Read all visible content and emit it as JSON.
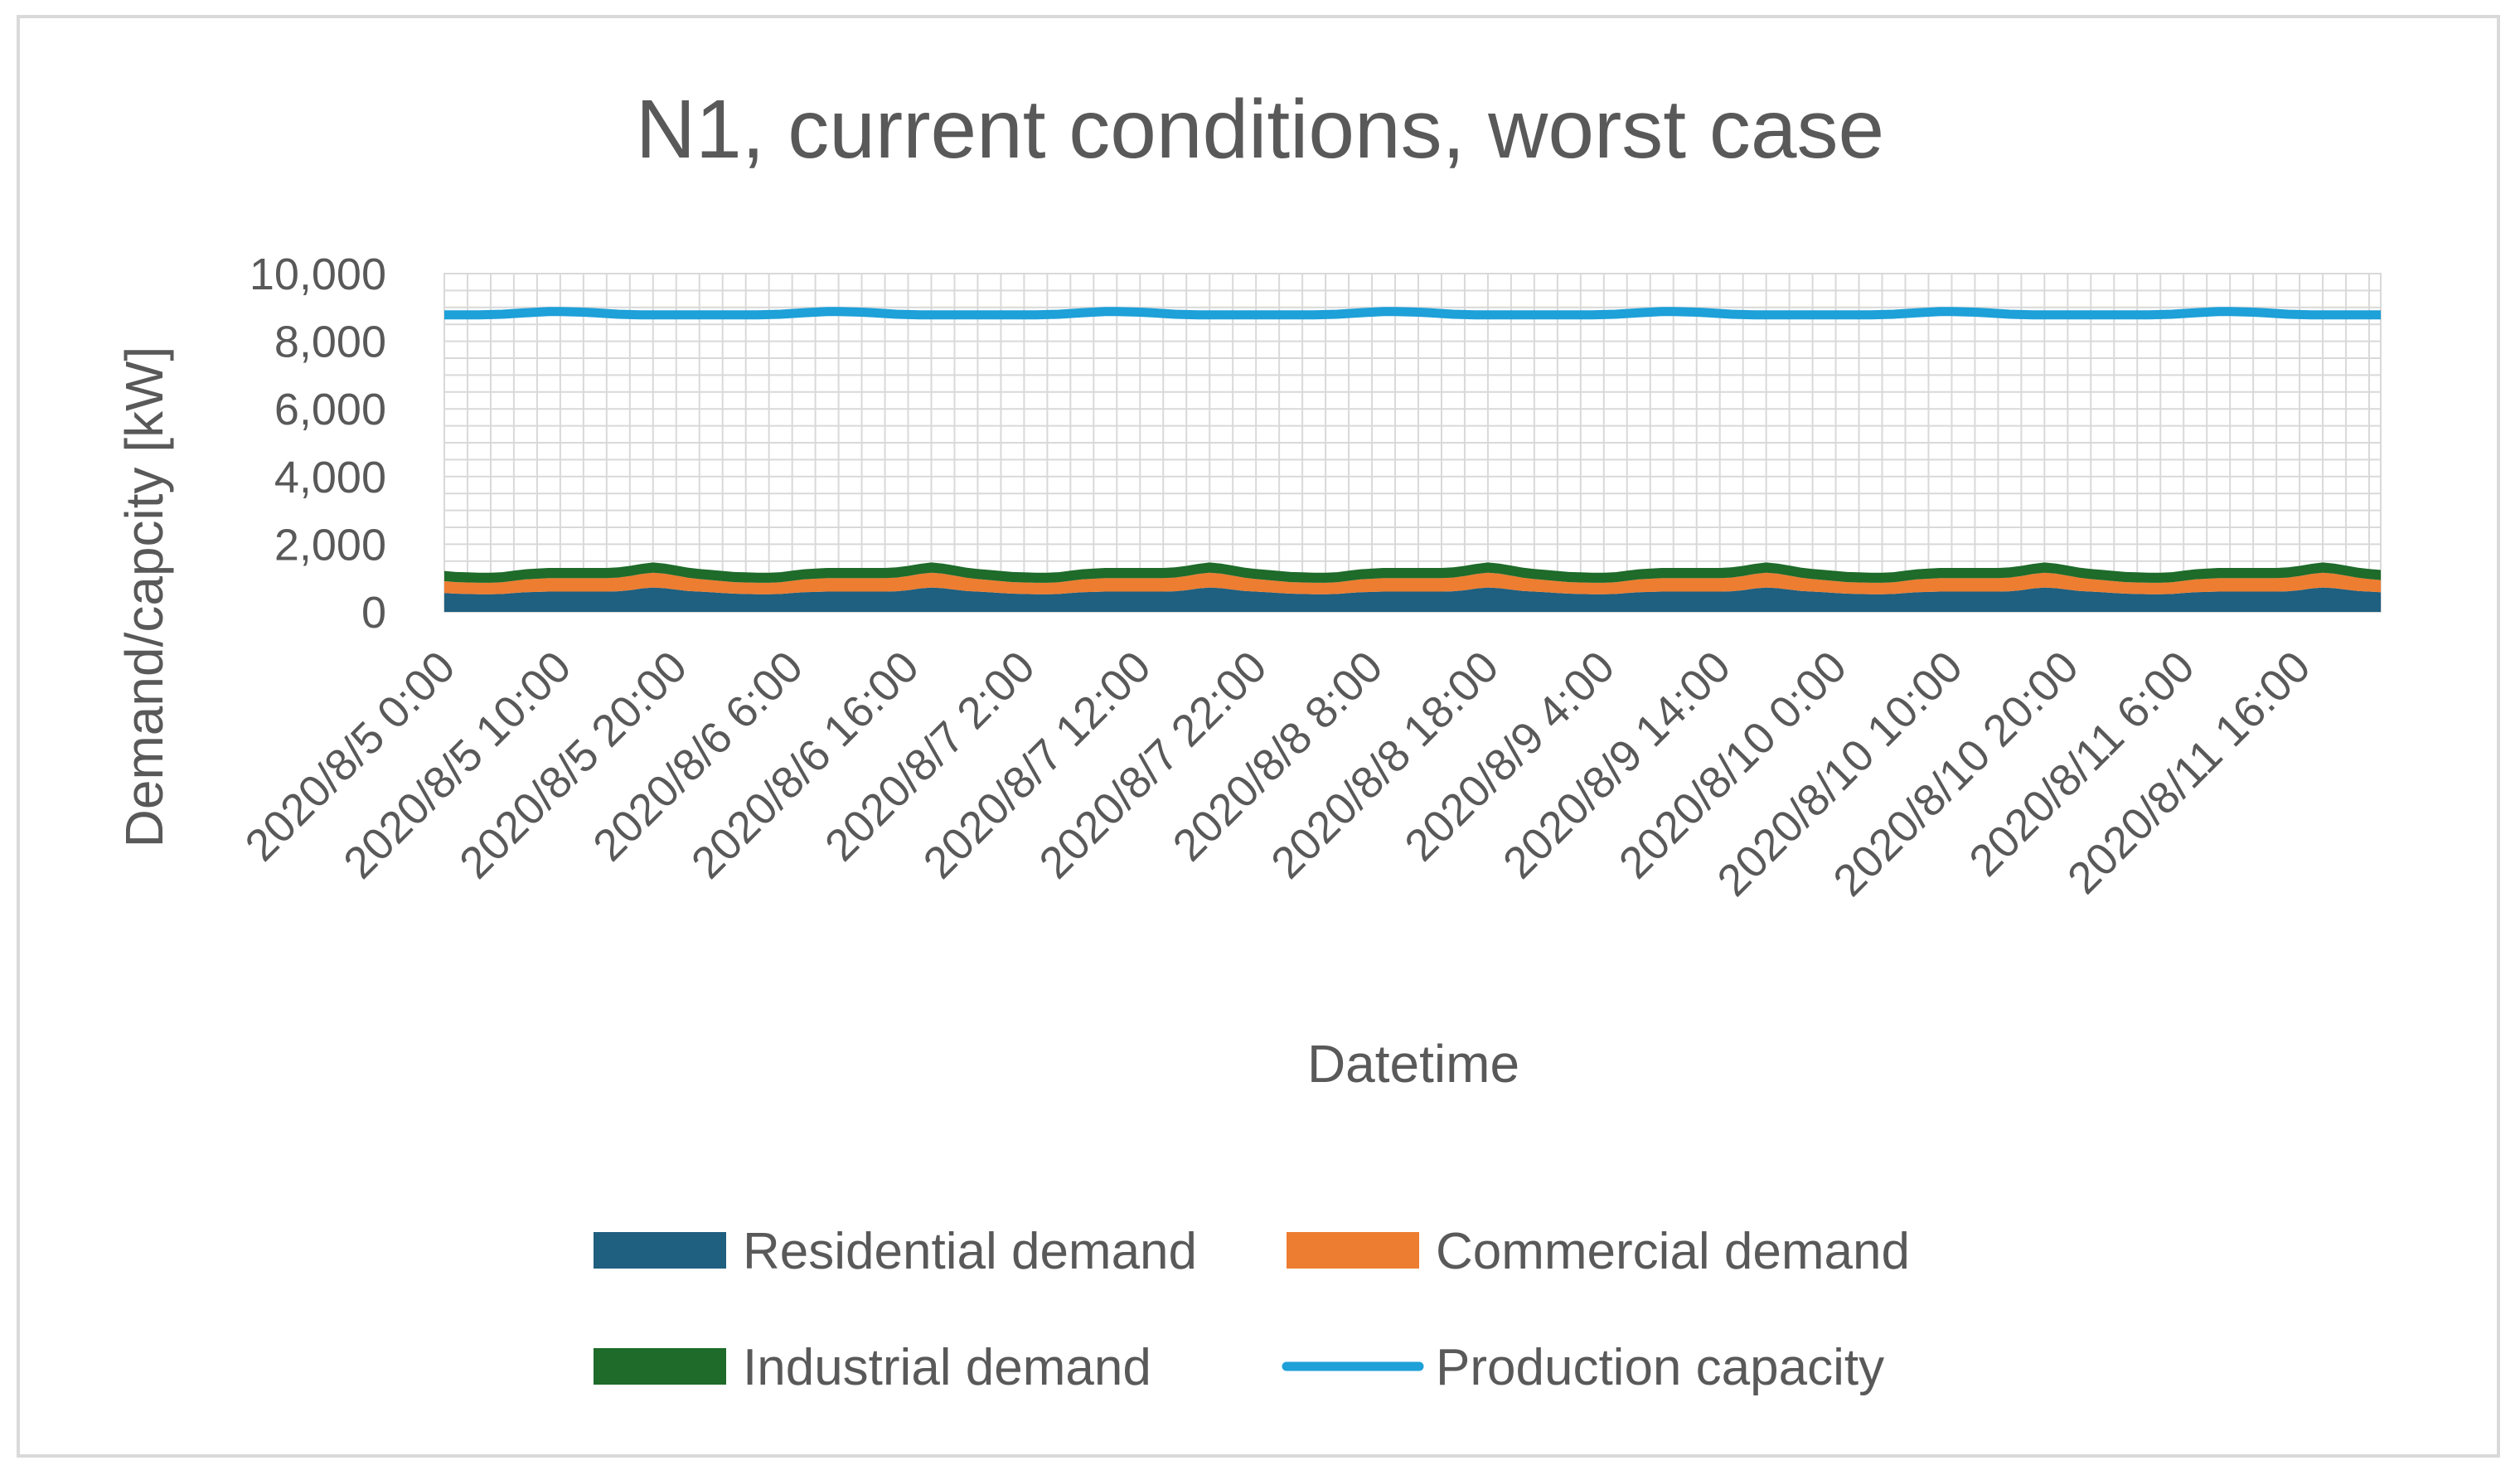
{
  "chart_data": {
    "type": "area",
    "title": "N1, current conditions, worst case",
    "xlabel": "Datetime",
    "ylabel": "Demand/capcity [kW]",
    "ylim": [
      0,
      10000
    ],
    "yticks": [
      0,
      2000,
      4000,
      6000,
      8000,
      10000
    ],
    "ytick_labels": [
      "0",
      "2,000",
      "4,000",
      "6,000",
      "8,000",
      "10,000"
    ],
    "grid": true,
    "legend_position": "bottom",
    "x_tick_labels": [
      "2020/8/5 0:00",
      "2020/8/5 10:00",
      "2020/8/5 20:00",
      "2020/8/6 6:00",
      "2020/8/6 16:00",
      "2020/8/7 2:00",
      "2020/8/7 12:00",
      "2020/8/7 22:00",
      "2020/8/8 8:00",
      "2020/8/8 18:00",
      "2020/8/9 4:00",
      "2020/8/9 14:00",
      "2020/8/10 0:00",
      "2020/8/10 10:00",
      "2020/8/10 20:00",
      "2020/8/11 6:00",
      "2020/8/11 16:00"
    ],
    "x_hours_per_day": 24,
    "x_days": 7,
    "series": [
      {
        "name": "Residential demand",
        "color": "#1f5f7f",
        "kind": "stacked-area",
        "daily_profile": [
          560,
          540,
          530,
          520,
          520,
          530,
          560,
          580,
          590,
          600,
          600,
          600,
          600,
          600,
          600,
          610,
          640,
          690,
          720,
          700,
          660,
          620,
          600,
          580
        ]
      },
      {
        "name": "Commercial demand",
        "color": "#ed7d31",
        "kind": "stacked-area",
        "daily_profile": [
          350,
          340,
          340,
          340,
          340,
          345,
          360,
          380,
          390,
          400,
          400,
          400,
          400,
          400,
          400,
          405,
          420,
          430,
          440,
          430,
          410,
          390,
          370,
          360
        ]
      },
      {
        "name": "Industrial demand",
        "color": "#1e6b2a",
        "kind": "stacked-area",
        "daily_profile": [
          300,
          300,
          300,
          300,
          300,
          300,
          300,
          300,
          300,
          300,
          300,
          300,
          300,
          300,
          300,
          300,
          300,
          300,
          300,
          300,
          300,
          300,
          300,
          300
        ]
      },
      {
        "name": "Production capacity",
        "color": "#1ea0d8",
        "kind": "line",
        "daily_profile": [
          8780,
          8780,
          8780,
          8780,
          8790,
          8800,
          8820,
          8840,
          8860,
          8880,
          8880,
          8870,
          8860,
          8840,
          8820,
          8800,
          8790,
          8780,
          8780,
          8780,
          8780,
          8780,
          8780,
          8780
        ]
      }
    ]
  }
}
